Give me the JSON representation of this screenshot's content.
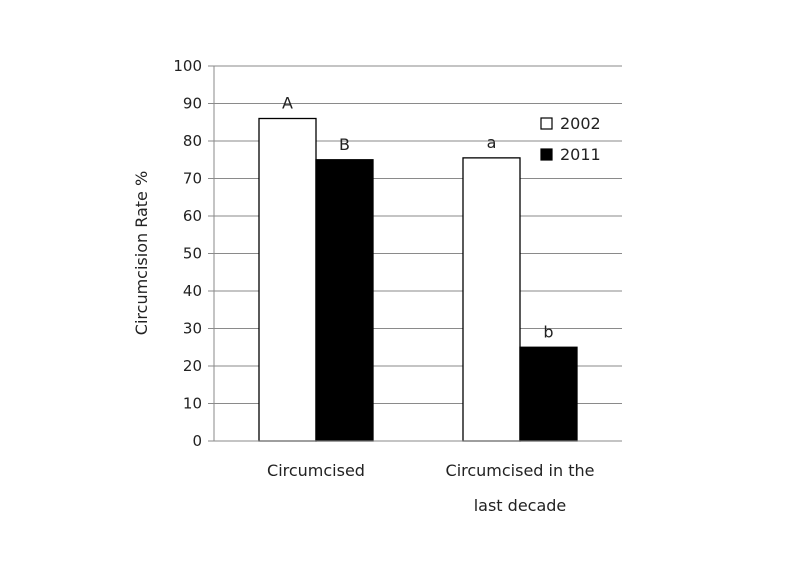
{
  "chart_data": {
    "type": "bar",
    "ylabel": "Circumcision Rate %",
    "ylim": [
      0,
      100
    ],
    "yticks": [
      0,
      10,
      20,
      30,
      40,
      50,
      60,
      70,
      80,
      90,
      100
    ],
    "grid": true,
    "legend_position": "top-right",
    "categories": [
      [
        "Circumcised"
      ],
      [
        "Circumcised in the",
        "last decade"
      ]
    ],
    "series": [
      {
        "name": "2002",
        "values": [
          86,
          75.5
        ],
        "labels": [
          "A",
          "a"
        ],
        "color": "#ffffff"
      },
      {
        "name": "2011",
        "values": [
          75,
          25
        ],
        "labels": [
          "B",
          "b"
        ],
        "color": "#000000"
      }
    ]
  }
}
